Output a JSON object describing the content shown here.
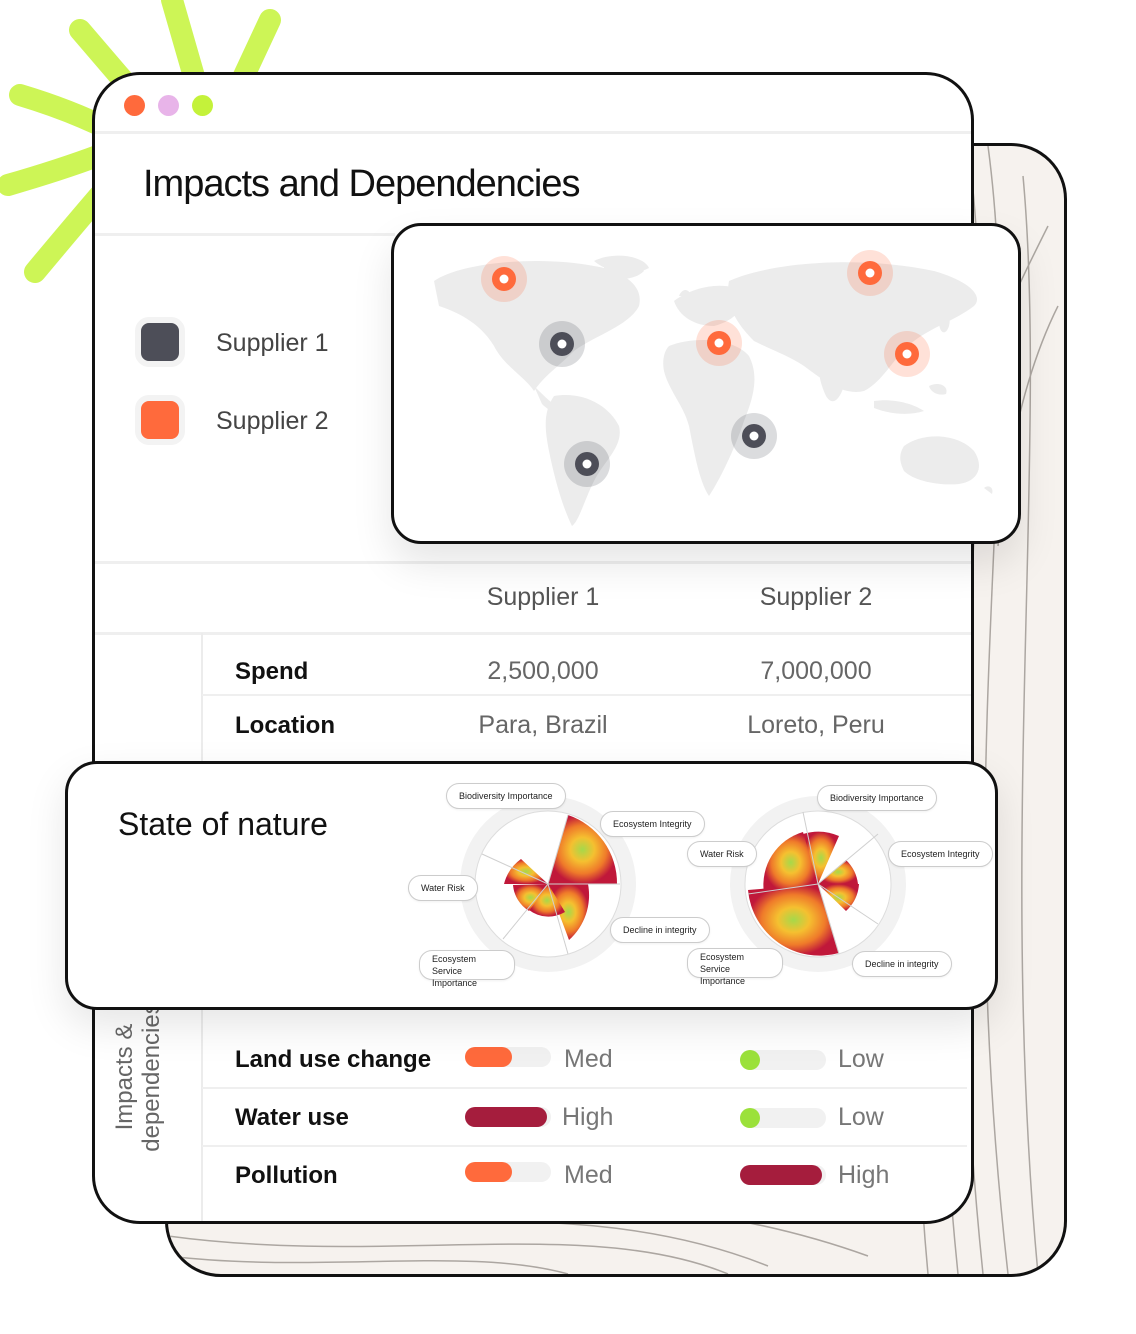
{
  "window": {
    "title": "Impacts and Dependencies",
    "traffic_lights": [
      "#ff6a3c",
      "#e8b4e9",
      "#c4f23a"
    ]
  },
  "legend": [
    {
      "label": "Supplier 1",
      "color": "#4d4e58"
    },
    {
      "label": "Supplier 2",
      "color": "#ff6a3c"
    }
  ],
  "map": {
    "markers": [
      {
        "supplier": "Supplier 2",
        "color": "#ff6a3c"
      },
      {
        "supplier": "Supplier 1",
        "color": "#4d4e58"
      },
      {
        "supplier": "Supplier 2",
        "color": "#ff6a3c"
      },
      {
        "supplier": "Supplier 2",
        "color": "#ff6a3c"
      },
      {
        "supplier": "Supplier 2",
        "color": "#ff6a3c"
      },
      {
        "supplier": "Supplier 1",
        "color": "#4d4e58"
      },
      {
        "supplier": "Supplier 1",
        "color": "#4d4e58"
      }
    ]
  },
  "table": {
    "columns": [
      "Supplier 1",
      "Supplier 2"
    ],
    "rows": [
      {
        "label": "Spend",
        "values": [
          "2,500,000",
          "7,000,000"
        ]
      },
      {
        "label": "Location",
        "values": [
          "Para, Brazil",
          "Loreto, Peru"
        ]
      }
    ]
  },
  "state_of_nature": {
    "title": "State of nature",
    "chart1": {
      "labels": [
        "Biodiversity Importance",
        "Ecosystem Integrity",
        "Decline in integrity",
        "Ecosystem Service Importance",
        "Water Risk"
      ]
    },
    "chart2": {
      "labels": [
        "Biodiversity Importance",
        "Ecosystem Integrity",
        "Decline in integrity",
        "Ecosystem Service Importance",
        "Water Risk"
      ]
    }
  },
  "impacts": {
    "side_label_line1": "Impacts &",
    "side_label_line2": "dependencies",
    "rows": [
      {
        "label": "Land use change",
        "s1": {
          "level": "Med",
          "fraction": 0.55,
          "color": "#ff6a3c"
        },
        "s2": {
          "level": "Low",
          "fraction": 0.2,
          "color": "#9be13a"
        }
      },
      {
        "label": "Water use",
        "s1": {
          "level": "High",
          "fraction": 0.95,
          "color": "#a51d3d"
        },
        "s2": {
          "level": "Low",
          "fraction": 0.2,
          "color": "#9be13a"
        }
      },
      {
        "label": "Pollution",
        "s1": {
          "level": "Med",
          "fraction": 0.55,
          "color": "#ff6a3c"
        },
        "s2": {
          "level": "High",
          "fraction": 0.95,
          "color": "#a51d3d"
        }
      }
    ]
  }
}
